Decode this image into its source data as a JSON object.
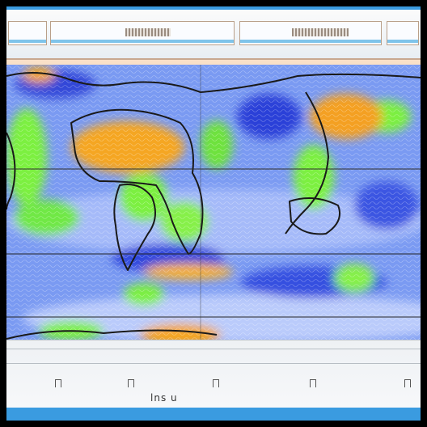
{
  "window": {
    "accent_color": "#3a9be0"
  },
  "map": {
    "type": "global-weather-field",
    "palette": [
      "#f5a623",
      "#7cf040",
      "#6a8cf0",
      "#2a3fd8",
      "#dde6ff"
    ],
    "legend_label": "lns u"
  }
}
